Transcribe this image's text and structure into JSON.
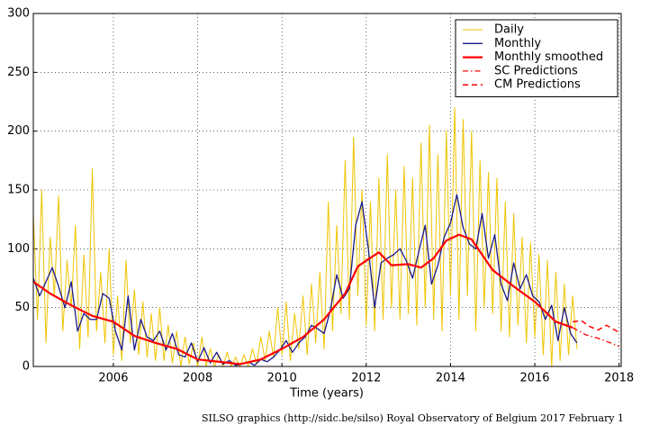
{
  "chart_data": {
    "type": "line",
    "xlabel": "Time (years)",
    "footer": "SILSO graphics (http://sidc.be/silso)  Royal Observatory of Belgium  2017 February 1",
    "xlim": [
      2004.1,
      2018.05
    ],
    "ylim": [
      0,
      300
    ],
    "xticks": [
      2006,
      2008,
      2010,
      2012,
      2014,
      2016,
      2018
    ],
    "yticks": [
      0,
      50,
      100,
      150,
      200,
      250,
      300
    ],
    "grid": true,
    "legend": "upper right",
    "series": [
      {
        "name": "Daily",
        "color": "#f0c400",
        "style": "solid",
        "width": 1,
        "x": [
          2004.1,
          2004.2,
          2004.3,
          2004.4,
          2004.5,
          2004.6,
          2004.7,
          2004.8,
          2004.9,
          2005.0,
          2005.1,
          2005.2,
          2005.3,
          2005.4,
          2005.5,
          2005.6,
          2005.7,
          2005.8,
          2005.9,
          2006.0,
          2006.1,
          2006.2,
          2006.3,
          2006.4,
          2006.5,
          2006.6,
          2006.7,
          2006.8,
          2006.9,
          2007.0,
          2007.1,
          2007.2,
          2007.3,
          2007.4,
          2007.5,
          2007.6,
          2007.7,
          2007.8,
          2007.9,
          2008.0,
          2008.1,
          2008.2,
          2008.3,
          2008.4,
          2008.5,
          2008.6,
          2008.7,
          2008.8,
          2008.9,
          2009.0,
          2009.1,
          2009.2,
          2009.3,
          2009.4,
          2009.5,
          2009.6,
          2009.7,
          2009.8,
          2009.9,
          2010.0,
          2010.1,
          2010.2,
          2010.3,
          2010.4,
          2010.5,
          2010.6,
          2010.7,
          2010.8,
          2010.9,
          2011.0,
          2011.1,
          2011.2,
          2011.3,
          2011.4,
          2011.5,
          2011.6,
          2011.7,
          2011.8,
          2011.9,
          2012.0,
          2012.1,
          2012.2,
          2012.3,
          2012.4,
          2012.5,
          2012.6,
          2012.7,
          2012.8,
          2012.9,
          2013.0,
          2013.1,
          2013.2,
          2013.3,
          2013.4,
          2013.5,
          2013.6,
          2013.7,
          2013.8,
          2013.9,
          2014.0,
          2014.1,
          2014.2,
          2014.3,
          2014.4,
          2014.5,
          2014.6,
          2014.7,
          2014.8,
          2014.9,
          2015.0,
          2015.1,
          2015.2,
          2015.3,
          2015.4,
          2015.5,
          2015.6,
          2015.7,
          2015.8,
          2015.9,
          2016.0,
          2016.1,
          2016.2,
          2016.3,
          2016.4,
          2016.5,
          2016.6,
          2016.7,
          2016.8,
          2016.9,
          2017.0
        ],
        "values": [
          130,
          40,
          150,
          20,
          110,
          60,
          145,
          30,
          90,
          50,
          120,
          15,
          95,
          25,
          168,
          30,
          80,
          20,
          100,
          10,
          60,
          5,
          90,
          20,
          65,
          10,
          55,
          8,
          45,
          5,
          50,
          5,
          35,
          3,
          30,
          0,
          25,
          2,
          20,
          0,
          25,
          0,
          15,
          0,
          10,
          0,
          12,
          0,
          8,
          0,
          10,
          0,
          15,
          2,
          25,
          5,
          30,
          8,
          50,
          10,
          55,
          5,
          45,
          15,
          60,
          10,
          70,
          20,
          80,
          15,
          140,
          30,
          120,
          45,
          175,
          40,
          195,
          60,
          150,
          35,
          140,
          30,
          160,
          40,
          180,
          50,
          150,
          40,
          170,
          45,
          160,
          35,
          190,
          50,
          205,
          40,
          180,
          30,
          200,
          60,
          220,
          40,
          210,
          60,
          200,
          30,
          175,
          50,
          165,
          45,
          160,
          30,
          140,
          25,
          130,
          35,
          110,
          20,
          105,
          25,
          95,
          10,
          90,
          0,
          80,
          5,
          70,
          10,
          60,
          15
        ]
      },
      {
        "name": "Monthly",
        "color": "#1a1a8c",
        "style": "solid",
        "width": 1.3,
        "x": [
          2004.1,
          2004.25,
          2004.4,
          2004.55,
          2004.7,
          2004.85,
          2005.0,
          2005.15,
          2005.3,
          2005.45,
          2005.6,
          2005.75,
          2005.9,
          2006.05,
          2006.2,
          2006.35,
          2006.5,
          2006.65,
          2006.8,
          2006.95,
          2007.1,
          2007.25,
          2007.4,
          2007.55,
          2007.7,
          2007.85,
          2008.0,
          2008.15,
          2008.3,
          2008.45,
          2008.6,
          2008.75,
          2008.9,
          2009.05,
          2009.2,
          2009.35,
          2009.5,
          2009.65,
          2009.8,
          2009.95,
          2010.1,
          2010.25,
          2010.4,
          2010.55,
          2010.7,
          2010.85,
          2011.0,
          2011.15,
          2011.3,
          2011.45,
          2011.6,
          2011.75,
          2011.9,
          2012.05,
          2012.2,
          2012.35,
          2012.5,
          2012.65,
          2012.8,
          2012.95,
          2013.1,
          2013.25,
          2013.4,
          2013.55,
          2013.7,
          2013.85,
          2014.0,
          2014.15,
          2014.3,
          2014.45,
          2014.6,
          2014.75,
          2014.9,
          2015.05,
          2015.2,
          2015.35,
          2015.5,
          2015.65,
          2015.8,
          2015.95,
          2016.1,
          2016.25,
          2016.4,
          2016.55,
          2016.7,
          2016.85,
          2017.0
        ],
        "values": [
          75,
          60,
          72,
          84,
          68,
          50,
          72,
          30,
          45,
          40,
          40,
          62,
          58,
          30,
          14,
          60,
          14,
          40,
          25,
          22,
          30,
          14,
          28,
          10,
          8,
          20,
          4,
          16,
          3,
          12,
          2,
          5,
          1,
          2,
          4,
          1,
          6,
          4,
          8,
          14,
          22,
          12,
          20,
          25,
          35,
          32,
          28,
          48,
          78,
          58,
          66,
          120,
          140,
          100,
          50,
          88,
          92,
          95,
          100,
          90,
          75,
          98,
          120,
          70,
          86,
          110,
          122,
          146,
          118,
          104,
          100,
          130,
          92,
          112,
          70,
          56,
          88,
          66,
          78,
          60,
          55,
          40,
          52,
          22,
          50,
          28,
          20
        ]
      },
      {
        "name": "Monthly smoothed",
        "color": "#ff0000",
        "style": "solid",
        "width": 2.2,
        "x": [
          2004.1,
          2004.5,
          2005.0,
          2005.5,
          2006.0,
          2006.5,
          2007.0,
          2007.5,
          2008.0,
          2008.5,
          2009.0,
          2009.5,
          2010.0,
          2010.5,
          2011.0,
          2011.5,
          2011.8,
          2012.0,
          2012.3,
          2012.6,
          2013.0,
          2013.3,
          2013.6,
          2013.9,
          2014.2,
          2014.5,
          2015.0,
          2015.5,
          2016.0,
          2016.5,
          2016.9
        ],
        "values": [
          72,
          62,
          52,
          43,
          38,
          26,
          20,
          15,
          6,
          4,
          2,
          6,
          15,
          25,
          40,
          62,
          85,
          90,
          97,
          86,
          87,
          84,
          92,
          107,
          112,
          108,
          82,
          68,
          55,
          38,
          33
        ]
      },
      {
        "name": "SC Predictions",
        "color": "#ff0000",
        "style": "dashdot",
        "width": 1.3,
        "x": [
          2016.9,
          2017.2,
          2017.5,
          2017.8,
          2018.0
        ],
        "values": [
          33,
          27,
          24,
          20,
          17
        ]
      },
      {
        "name": "CM Predictions",
        "color": "#ff0000",
        "style": "dashed",
        "width": 1.5,
        "x": [
          2016.9,
          2017.1,
          2017.3,
          2017.5,
          2017.7,
          2017.9,
          2018.0
        ],
        "values": [
          38,
          39,
          34,
          31,
          35,
          31,
          29
        ]
      }
    ]
  }
}
